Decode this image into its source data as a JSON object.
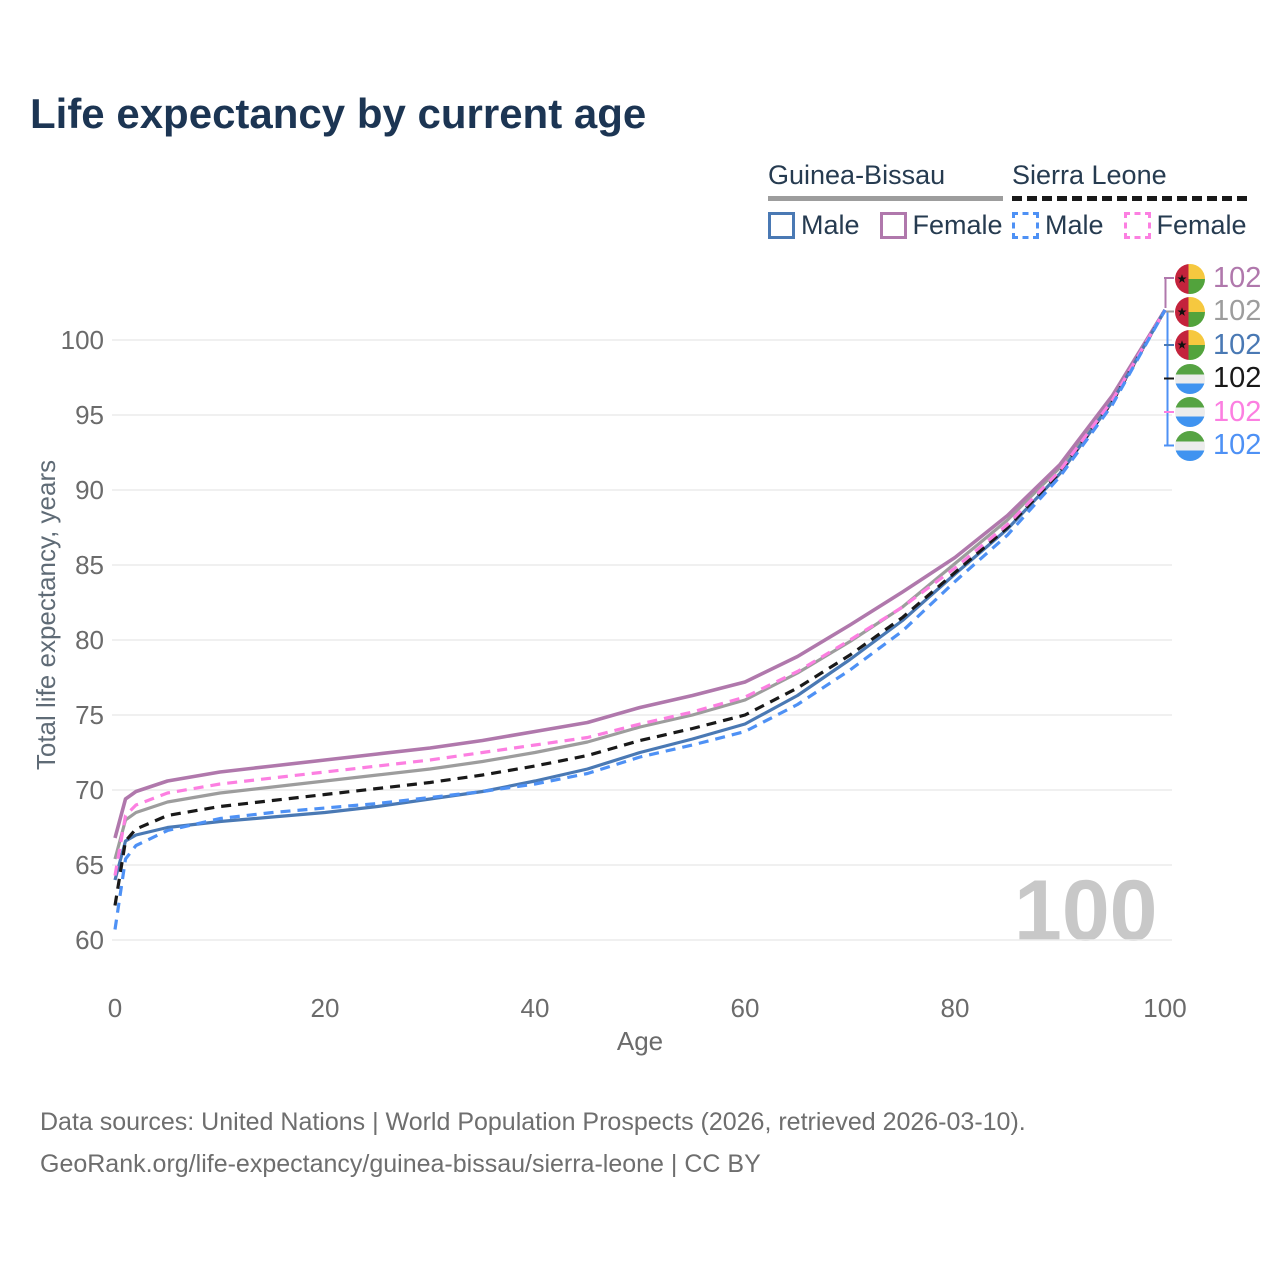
{
  "title": "Life expectancy by current age",
  "legend": {
    "groups": [
      {
        "label": "Guinea-Bissau",
        "line_style": "solid",
        "line_color": "#9d9d9d",
        "items": [
          {
            "label": "Male",
            "color": "#4a79b4",
            "dash": false
          },
          {
            "label": "Female",
            "color": "#b078ac",
            "dash": false
          }
        ]
      },
      {
        "label": "Sierra Leone",
        "line_style": "dashed",
        "line_color": "#191919",
        "items": [
          {
            "label": "Male",
            "color": "#4e91f5",
            "dash": true
          },
          {
            "label": "Female",
            "color": "#fc7fe1",
            "dash": true
          }
        ]
      }
    ]
  },
  "chart_data": {
    "type": "line",
    "title": "Life expectancy by current age",
    "xlabel": "Age",
    "ylabel": "Total life expectancy, years",
    "xlim": [
      0,
      100
    ],
    "ylim": [
      60,
      103
    ],
    "x_ticks": [
      0,
      20,
      40,
      60,
      80,
      100
    ],
    "y_ticks": [
      60,
      65,
      70,
      75,
      80,
      85,
      90,
      95,
      100
    ],
    "grid": "horizontal",
    "legend_position": "top-right",
    "x": [
      0,
      1,
      2,
      5,
      10,
      15,
      20,
      25,
      30,
      35,
      40,
      45,
      50,
      55,
      60,
      65,
      70,
      75,
      80,
      85,
      90,
      95,
      100
    ],
    "series": [
      {
        "name": "Guinea-Bissau Female",
        "country": "Guinea-Bissau",
        "sex": "female",
        "color": "#b078ac",
        "dash": false,
        "flag": "gw",
        "end_label": "102",
        "values": [
          66.8,
          69.4,
          69.9,
          70.6,
          71.2,
          71.6,
          72.0,
          72.4,
          72.8,
          73.3,
          73.9,
          74.5,
          75.5,
          76.3,
          77.2,
          78.9,
          81.0,
          83.2,
          85.5,
          88.3,
          91.7,
          96.3,
          102
        ]
      },
      {
        "name": "Guinea-Bissau Both sexes",
        "country": "Guinea-Bissau",
        "sex": "both",
        "color": "#9d9d9d",
        "dash": false,
        "flag": "gw",
        "end_label": "102",
        "values": [
          65.4,
          68.0,
          68.5,
          69.2,
          69.8,
          70.2,
          70.6,
          71.0,
          71.4,
          71.9,
          72.5,
          73.2,
          74.2,
          75.0,
          76.0,
          77.8,
          79.9,
          82.2,
          85.1,
          88.0,
          91.5,
          96.1,
          102
        ]
      },
      {
        "name": "Guinea-Bissau Male",
        "country": "Guinea-Bissau",
        "sex": "male",
        "color": "#4a79b4",
        "dash": false,
        "flag": "gw",
        "end_label": "102",
        "values": [
          64.0,
          66.6,
          67.0,
          67.5,
          67.9,
          68.2,
          68.5,
          68.9,
          69.4,
          69.9,
          70.6,
          71.4,
          72.5,
          73.4,
          74.4,
          76.3,
          78.7,
          81.3,
          84.4,
          87.4,
          91.1,
          95.9,
          102
        ]
      },
      {
        "name": "Sierra Leone Both sexes",
        "country": "Sierra Leone",
        "sex": "both",
        "color": "#191919",
        "dash": true,
        "flag": "sl",
        "end_label": "102",
        "values": [
          62.3,
          66.6,
          67.4,
          68.3,
          68.9,
          69.3,
          69.7,
          70.1,
          70.5,
          71.0,
          71.6,
          72.3,
          73.3,
          74.1,
          75.0,
          76.8,
          79.0,
          81.5,
          84.5,
          87.5,
          91.2,
          95.9,
          102
        ]
      },
      {
        "name": "Sierra Leone Female",
        "country": "Sierra Leone",
        "sex": "female",
        "color": "#fc7fe1",
        "dash": true,
        "flag": "sl",
        "end_label": "102",
        "values": [
          64.3,
          68.3,
          69.0,
          69.8,
          70.4,
          70.8,
          71.2,
          71.6,
          72.0,
          72.5,
          73.0,
          73.5,
          74.4,
          75.2,
          76.2,
          77.9,
          80.0,
          82.2,
          84.8,
          87.7,
          91.3,
          96.0,
          102
        ]
      },
      {
        "name": "Sierra Leone Male",
        "country": "Sierra Leone",
        "sex": "male",
        "color": "#4e91f5",
        "dash": true,
        "flag": "sl",
        "end_label": "102",
        "values": [
          60.7,
          65.4,
          66.3,
          67.3,
          68.1,
          68.5,
          68.8,
          69.1,
          69.5,
          69.9,
          70.4,
          71.1,
          72.2,
          73.0,
          73.9,
          75.7,
          78.0,
          80.6,
          83.9,
          87.0,
          90.9,
          95.7,
          102
        ]
      }
    ],
    "end_labels": [
      {
        "value": "102",
        "color": "#b078ac",
        "flag": "gw"
      },
      {
        "value": "102",
        "color": "#9d9d9d",
        "flag": "gw"
      },
      {
        "value": "102",
        "color": "#4a79b4",
        "flag": "gw"
      },
      {
        "value": "102",
        "color": "#191919",
        "flag": "sl"
      },
      {
        "value": "102",
        "color": "#fc7fe1",
        "flag": "sl"
      },
      {
        "value": "102",
        "color": "#4e91f5",
        "flag": "sl"
      }
    ],
    "age_watermark": "100"
  },
  "flag_colors": {
    "gw_red": "#c4233c",
    "gw_yellow": "#f6c83f",
    "gw_green": "#52a33c",
    "gw_star": "#111111",
    "sl_green": "#56a343",
    "sl_white": "#ececec",
    "sl_blue": "#3f93f0"
  },
  "footer": {
    "line1": "Data sources: United Nations | World Population Prospects (2026, retrieved 2026-03-10).",
    "line2": "GeoRank.org/life-expectancy/guinea-bissau/sierra-leone | CC BY"
  }
}
